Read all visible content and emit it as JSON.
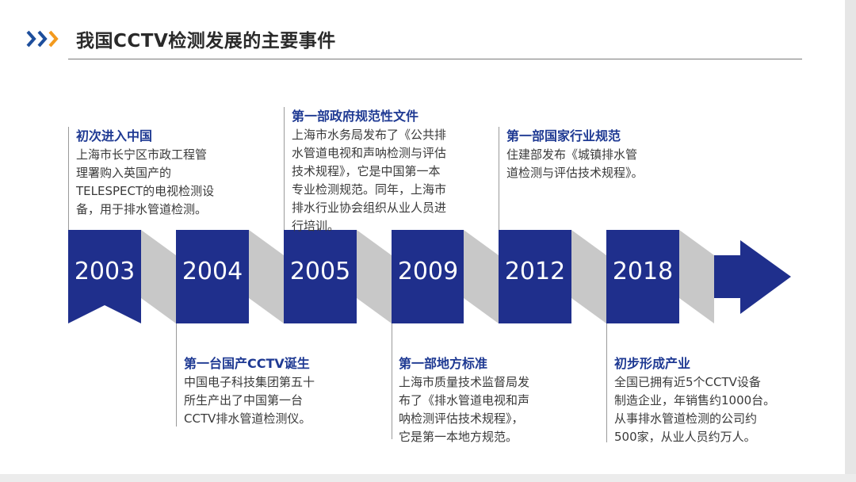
{
  "title": "我国CCTV检测发展的主要事件",
  "colors": {
    "navy": "#1f2f8c",
    "fold": "#c8c8c8",
    "heading": "#1f3a93",
    "accent_chevron_1": "#1d4e9c",
    "accent_chevron_2": "#f39a1e"
  },
  "icons": [
    "chevron-right-double-icon"
  ],
  "years": [
    "2003",
    "2004",
    "2005",
    "2009",
    "2012",
    "2018"
  ],
  "events": {
    "e2003": {
      "head": "初次进入中国",
      "lines": [
        "上海市长宁区市政工程管",
        "理署购入英国产的",
        "TELESPECT的电视检测设",
        "备，用于排水管道检测。"
      ]
    },
    "e2004": {
      "head": "第一台国产CCTV诞生",
      "lines": [
        "中国电子科技集团第五十",
        "所生产出了中国第一台",
        "CCTV排水管道检测仪。"
      ]
    },
    "e2005": {
      "head": "第一部政府规范性文件",
      "lines": [
        "上海市水务局发布了《公共排",
        "水管道电视和声呐检测与评估",
        "技术规程》，它是中国第一本",
        "专业检测规范。同年，上海市",
        "排水行业协会组织从业人员进",
        "行培训。"
      ]
    },
    "e2009": {
      "head": "第一部地方标准",
      "lines": [
        "上海市质量技术监督局发",
        "布了《排水管道电视和声",
        "呐检测评估技术规程》，",
        "它是第一本地方规范。"
      ]
    },
    "e2012": {
      "head": "第一部国家行业规范",
      "lines": [
        "住建部发布《城镇排水管",
        "道检测与评估技术规程》。"
      ]
    },
    "e2018": {
      "head": "初步形成产业",
      "lines": [
        "全国已拥有近5个CCTV设备",
        "制造企业，年销售约1000台。",
        "从事排水管道检测的公司约",
        "500家，从业人员约万人。"
      ]
    }
  }
}
